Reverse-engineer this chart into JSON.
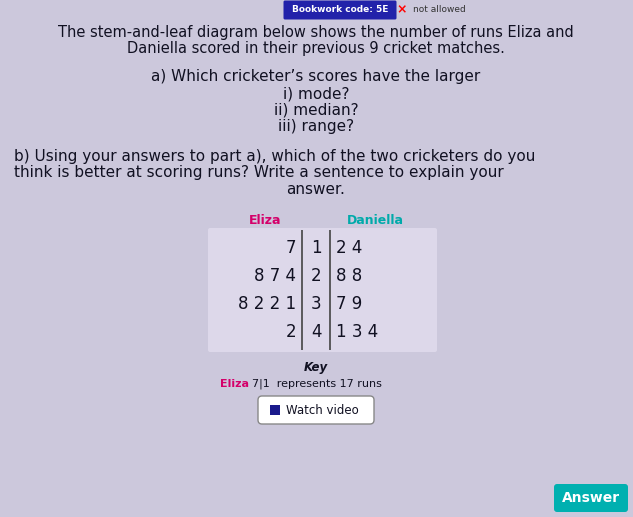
{
  "bg_color": "#ccc8dc",
  "title_line1": "The stem-and-leaf diagram below shows the number of runs Eliza and",
  "title_line2": "Daniella scored in their previous 9 cricket matches.",
  "question_a": "a) Which cricketer’s scores have the larger",
  "question_a_i": "i) mode?",
  "question_a_ii": "ii) median?",
  "question_a_iii": "iii) range?",
  "question_b_1": "b) Using your answers to part a), which of the two cricketers do you",
  "question_b_2": "think is better at scoring runs? Write a sentence to explain your",
  "question_b_3": "answer.",
  "header_bookwork": "Bookwork code: 5E",
  "header_notallowed": "not allowed",
  "eliza_label": "Eliza",
  "daniella_label": "Daniella",
  "stems": [
    "1",
    "2",
    "3",
    "4"
  ],
  "eliza_leaves": [
    [
      "7"
    ],
    [
      "8",
      "7",
      "4"
    ],
    [
      "8",
      "2",
      "2",
      "1"
    ],
    [
      "2"
    ]
  ],
  "daniella_leaves": [
    [
      "2",
      "4"
    ],
    [
      "8",
      "8"
    ],
    [
      "7",
      "9"
    ],
    [
      "1",
      "3",
      "4"
    ]
  ],
  "key_title": "Key",
  "key_eliza_label": "Eliza",
  "key_text": "7|1  represents 17 runs",
  "watch_video": "Watch video",
  "answer_btn": "Answer",
  "eliza_color": "#d4006a",
  "daniella_color": "#00aaaa",
  "table_bg": "#ddd8ea",
  "text_color": "#111122",
  "font_size_title": 10.5,
  "font_size_qa": 11,
  "font_size_table": 12,
  "font_size_key": 9,
  "bookwork_color": "#2222aa",
  "answer_color": "#00b0b0"
}
